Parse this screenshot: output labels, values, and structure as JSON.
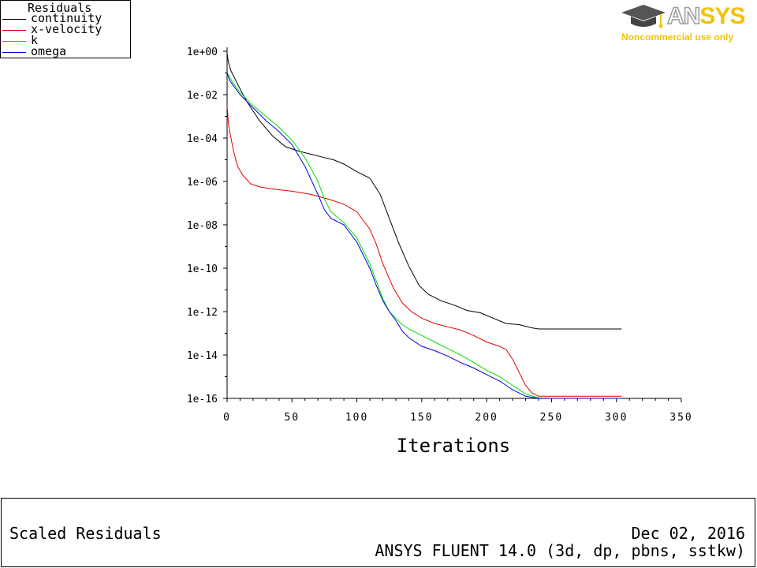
{
  "legend": {
    "title": "Residuals",
    "items": [
      {
        "label": "continuity",
        "color": "#000000"
      },
      {
        "label": "x-velocity",
        "color": "#e00000"
      },
      {
        "label": "k",
        "color": "#00e000"
      },
      {
        "label": "omega",
        "color": "#0000e0"
      }
    ]
  },
  "logo": {
    "brand_prefix": "AN",
    "brand_suffix": "SYS",
    "subtitle": "Noncommercial use only",
    "accent_color": "#f2c300",
    "icon": "graduation-cap-icon"
  },
  "footer": {
    "title": "Scaled Residuals",
    "date": "Dec 02, 2016",
    "version": "ANSYS FLUENT 14.0 (3d, dp, pbns, sstkw)"
  },
  "chart_data": {
    "type": "line",
    "title": "",
    "xlabel": "Iterations",
    "ylabel": "",
    "xlim": [
      0,
      350
    ],
    "ylim_log10": [
      -16,
      0
    ],
    "y_scale": "log",
    "grid": false,
    "legend_position": "top-left",
    "x_ticks": [
      0,
      50,
      100,
      150,
      200,
      250,
      300,
      350
    ],
    "x_tick_labels": [
      "0",
      "50",
      "100",
      "150",
      "200",
      "250",
      "300",
      "350"
    ],
    "y_ticks_log10": [
      0,
      -2,
      -4,
      -6,
      -8,
      -10,
      -12,
      -14,
      -16
    ],
    "y_tick_labels": [
      "1e+00",
      "1e-02",
      "1e-04",
      "1e-06",
      "1e-08",
      "1e-10",
      "1e-12",
      "1e-14",
      "1e-16"
    ],
    "series": [
      {
        "name": "continuity",
        "color": "#000000",
        "x": [
          0,
          1,
          3,
          8,
          15,
          25,
          35,
          45,
          55,
          65,
          75,
          82,
          90,
          100,
          110,
          118,
          125,
          132,
          140,
          148,
          155,
          165,
          175,
          185,
          195,
          205,
          215,
          225,
          235,
          240,
          250,
          260,
          270,
          280,
          290,
          304
        ],
        "y": [
          -0.1,
          -0.5,
          -0.9,
          -1.5,
          -2.3,
          -3.2,
          -3.9,
          -4.4,
          -4.6,
          -4.75,
          -4.9,
          -5.0,
          -5.2,
          -5.55,
          -5.85,
          -6.6,
          -7.7,
          -8.8,
          -9.9,
          -10.8,
          -11.2,
          -11.5,
          -11.7,
          -11.95,
          -12.05,
          -12.3,
          -12.55,
          -12.6,
          -12.75,
          -12.8,
          -12.8,
          -12.8,
          -12.8,
          -12.8,
          -12.8,
          -12.8
        ]
      },
      {
        "name": "x-velocity",
        "color": "#e00000",
        "x": [
          0,
          1,
          3,
          5,
          8,
          12,
          18,
          25,
          35,
          50,
          65,
          80,
          90,
          100,
          110,
          115,
          120,
          128,
          135,
          142,
          150,
          160,
          170,
          180,
          190,
          200,
          210,
          215,
          220,
          225,
          230,
          235,
          240,
          250,
          260,
          270,
          280,
          290,
          304
        ],
        "y": [
          -2.5,
          -3.3,
          -4.0,
          -4.6,
          -5.3,
          -5.7,
          -6.1,
          -6.25,
          -6.35,
          -6.45,
          -6.6,
          -6.85,
          -7.05,
          -7.4,
          -8.2,
          -8.9,
          -9.8,
          -10.9,
          -11.6,
          -12.0,
          -12.3,
          -12.55,
          -12.7,
          -12.85,
          -13.1,
          -13.4,
          -13.6,
          -13.75,
          -14.2,
          -14.8,
          -15.4,
          -15.75,
          -15.9,
          -15.9,
          -15.9,
          -15.9,
          -15.9,
          -15.9,
          -15.9
        ]
      },
      {
        "name": "k",
        "color": "#00e000",
        "x": [
          0,
          2,
          5,
          10,
          20,
          30,
          40,
          50,
          60,
          70,
          75,
          80,
          90,
          100,
          110,
          120,
          125,
          130,
          135,
          140,
          150,
          160,
          170,
          180,
          190,
          200,
          210,
          220,
          230,
          240,
          250,
          260,
          270,
          280,
          290,
          304
        ],
        "y": [
          -1.0,
          -1.2,
          -1.5,
          -1.9,
          -2.5,
          -3.0,
          -3.5,
          -4.1,
          -4.9,
          -6.0,
          -6.8,
          -7.4,
          -7.9,
          -8.6,
          -9.8,
          -11.4,
          -12.0,
          -12.3,
          -12.6,
          -12.8,
          -13.1,
          -13.4,
          -13.7,
          -14.0,
          -14.35,
          -14.7,
          -15.0,
          -15.4,
          -15.8,
          -15.98,
          -16.0,
          -16.0,
          -16.0,
          -16.0,
          -16.0,
          -16.0
        ]
      },
      {
        "name": "omega",
        "color": "#0000e0",
        "x": [
          0,
          2,
          5,
          10,
          15,
          20,
          30,
          40,
          50,
          60,
          70,
          75,
          80,
          90,
          100,
          110,
          115,
          120,
          125,
          130,
          135,
          140,
          150,
          160,
          170,
          180,
          190,
          200,
          210,
          220,
          230,
          240,
          250,
          260,
          270,
          280,
          290,
          304
        ],
        "y": [
          -1.0,
          -1.35,
          -1.6,
          -2.0,
          -2.3,
          -2.6,
          -3.2,
          -3.7,
          -4.3,
          -5.3,
          -6.6,
          -7.3,
          -7.7,
          -8.0,
          -8.8,
          -10.0,
          -10.8,
          -11.5,
          -12.0,
          -12.4,
          -12.9,
          -13.2,
          -13.6,
          -13.8,
          -14.05,
          -14.35,
          -14.6,
          -14.9,
          -15.2,
          -15.6,
          -15.9,
          -16.0,
          -16.0,
          -16.0,
          -16.0,
          -16.0,
          -16.0,
          -16.0
        ]
      }
    ]
  }
}
